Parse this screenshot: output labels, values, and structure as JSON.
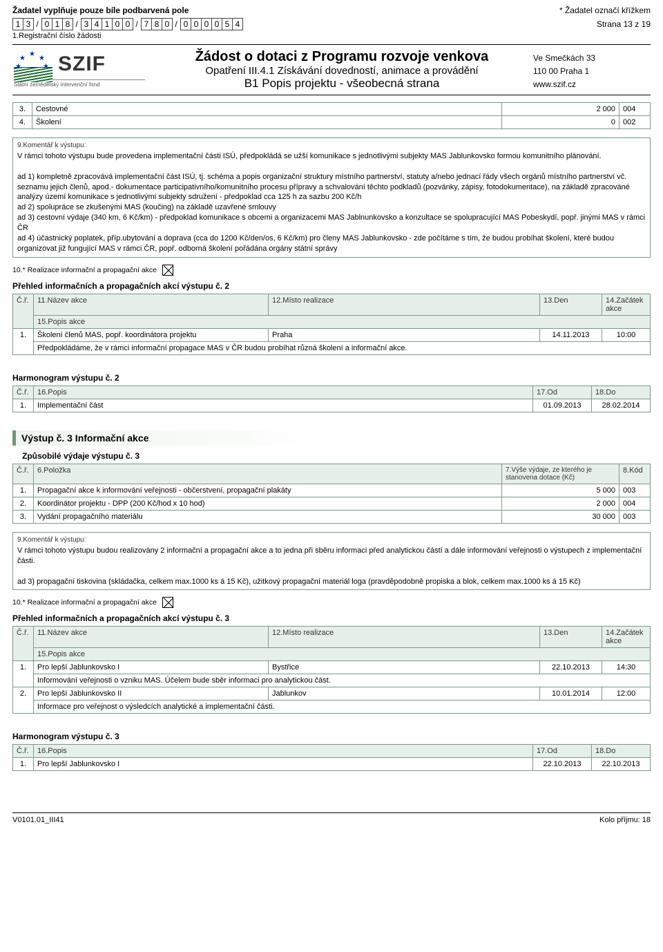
{
  "header": {
    "applicant_note": "Žadatel vyplňuje pouze bíle podbarvená pole",
    "mark_note": "* Žadatel označí křížkem",
    "page_label": "Strana 13 z 19",
    "reg_digits": [
      "1",
      "3",
      "/",
      "0",
      "1",
      "8",
      "/",
      "3",
      "4",
      "1",
      "0",
      "0",
      "/",
      "7",
      "8",
      "0",
      "/",
      "0",
      "0",
      "0",
      "0",
      "5",
      "4"
    ],
    "reg_label": "1.Registrační číslo žádosti",
    "szif": "SZIF",
    "szif_sub": "Státní zemědělský intervenční fond",
    "title1": "Žádost o dotaci z Programu rozvoje venkova",
    "title2": "Opatření III.4.1 Získávání dovedností, animace a provádění",
    "title3": "B1 Popis projektu - všeobecná strana",
    "addr1": "Ve Smečkách 33",
    "addr2": "110 00 Praha 1",
    "addr3": "www.szif.cz"
  },
  "cost_rows_top": [
    {
      "n": "3.",
      "item": "Cestovné",
      "amount": "2 000",
      "code": "004"
    },
    {
      "n": "4.",
      "item": "Školení",
      "amount": "0",
      "code": "002"
    }
  ],
  "comment2_label": "9.Komentář k výstupu:",
  "comment2_text": "V rámci tohoto výstupu bude provedena implementační části ISÚ, předpokládá se užší komunikace s jednotlivými subjekty MAS Jablunkovsko formou komunitního plánování.\n\nad 1) kompletně zpracovává implementační část ISÚ, tj. schéma a popis organizační struktury místního partnerství, statuty a/nebo jednací řády všech orgánů místního partnerství vč. seznamu jejich členů, apod.- dokumentace participativního/komunitního procesu přípravy a schvalování těchto podkladů (pozvánky, zápisy, fotodokumentace), na základě zpracováné analýzy území komunikace s jednotlivými subjekty sdružení - předpoklad cca 125 h za sazbu 200 Kč/h\nad 2) spolupráce se zkušenými MAS (koučing) na základě uzavřené smlouvy\nad 3) cestovní výdaje (340 km, 6 Kč/km) - předpoklad komunikace s obcemi a organizacemi MAS Jablnunkovsko a konzultace se spolupracující MAS Pobeskydí, popř. jinými MAS v rámci ČR\nad 4) účastnický poplatek, příp.ubytování a doprava (cca do 1200 Kč/den/os, 6 Kč/km) pro členy MAS Jablunkovsko - zde počítáme s tím, že budou probíhat školení, které budou organizovat již fungující MAS v rámci ČR, popř. odborná školení pořádána orgány státní správy",
  "check_label": "10.* Realizace informační a propagační akce",
  "events2_heading": "Přehled informačních a propagačních akcí výstupu č. 2",
  "events_headers": {
    "cr": "Č.ř.",
    "name": "11.Název akce",
    "place": "12.Místo realizace",
    "day": "13.Den",
    "start": "14.Začátek akce",
    "desc": "15.Popis akce"
  },
  "events2": [
    {
      "n": "1.",
      "name": "Školení členů MAS, popř. koordinátora projektu",
      "place": "Praha",
      "day": "14.11.2013",
      "start": "10:00",
      "desc": "Předpokládáme, že v rámci informační propagace MAS v ČR budou probíhat různá školení a informační akce."
    }
  ],
  "harm2_heading": "Harmonogram výstupu č. 2",
  "harm_headers": {
    "cr": "Č.ř.",
    "popis": "16.Popis",
    "od": "17.Od",
    "do": "18.Do"
  },
  "harm2": [
    {
      "n": "1.",
      "popis": "Implementační část",
      "od": "01.09.2013",
      "do": "28.02.2014"
    }
  ],
  "output3_title": "Výstup č. 3  Informační akce",
  "cost3_heading": "Způsobilé výdaje výstupu č. 3",
  "cost_headers": {
    "cr": "Č.ř.",
    "item": "6.Položka",
    "amount": "7.Výše výdaje, ze kterého je stanovena dotace (Kč)",
    "code": "8.Kód"
  },
  "cost3": [
    {
      "n": "1.",
      "item": "Propagační akce k informování veřejnosti - občerstvení, propagační plakáty",
      "amount": "5 000",
      "code": "003"
    },
    {
      "n": "2.",
      "item": "Koordinátor projektu - DPP (200 Kč/hod x 10 hod)",
      "amount": "2 000",
      "code": "004"
    },
    {
      "n": "3.",
      "item": "Vydání propagačního materiálu",
      "amount": "30 000",
      "code": "003"
    }
  ],
  "comment3_label": "9.Komentář k výstupu:",
  "comment3_text": "V rámci tohoto výstupu budou realizovány 2 informační a propagační akce a to jedna při sběru informaci před analytickou částí a dále informování veřejnosti o výstupech z implementační části.\n\nad 3) propagační tiskovina (skládačka, celkem max.1000 ks á 15 Kč), užitkový propagační materiál loga (pravděpodobně propiska a blok, celkem max.1000 ks á 15 Kč)",
  "events3_heading": "Přehled informačních a propagačních akcí výstupu č. 3",
  "events3": [
    {
      "n": "1.",
      "name": "Pro lepší Jablunkovsko I",
      "place": "Bystřice",
      "day": "22.10.2013",
      "start": "14:30",
      "desc": "Informování veřejnosti o vzniku MAS. Účelem bude sběr informaci pro analytickou část."
    },
    {
      "n": "2.",
      "name": "Pro lepší Jablunkovsko II",
      "place": "Jablunkov",
      "day": "10.01.2014",
      "start": "12:00",
      "desc": "Informace pro veřejnost o výsledcích analytické a implementační části."
    }
  ],
  "harm3_heading": "Harmonogram výstupu č. 3",
  "harm3": [
    {
      "n": "1.",
      "popis": "Pro lepší Jablunkovsko I",
      "od": "22.10.2013",
      "do": "22.10.2013"
    }
  ],
  "footer": {
    "left": "V0101.01_III41",
    "right": "Kolo příjmu: 18"
  }
}
